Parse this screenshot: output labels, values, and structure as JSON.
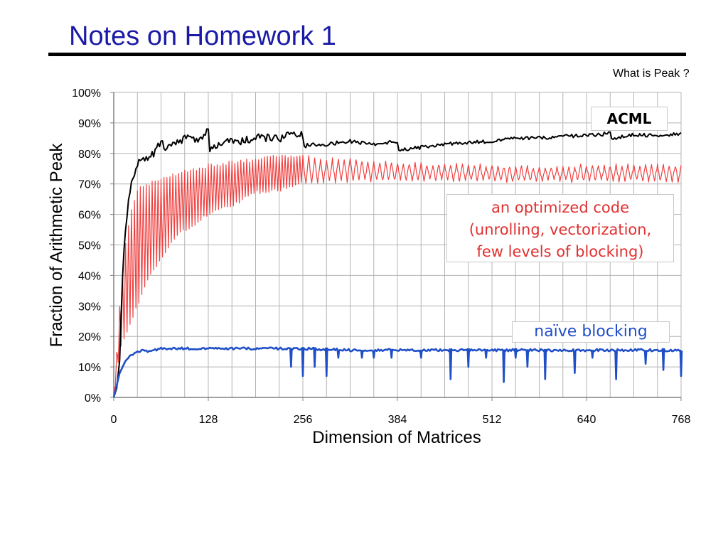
{
  "slide": {
    "title": "Notes on Homework 1",
    "side_note": "What is Peak ?"
  },
  "callouts": {
    "acml": "ACML",
    "optimized_lines": [
      "an optimized code",
      "(unrolling, vectorization,",
      "few levels of blocking)"
    ],
    "naive": "naïve blocking"
  },
  "colors": {
    "acml": "#000000",
    "optimized": "#f04040",
    "naive": "#1f4fc8",
    "grid": "#b4b4b4",
    "title": "#1a1aa6"
  },
  "chart_data": {
    "type": "line",
    "title": "",
    "xlabel": "Dimension of Matrices",
    "ylabel": "Fraction of Arithmetic Peak",
    "xlim": [
      0,
      768
    ],
    "ylim": [
      0,
      100
    ],
    "x_ticks": [
      0,
      128,
      256,
      384,
      512,
      640,
      768
    ],
    "y_ticks": [
      0,
      10,
      20,
      30,
      40,
      50,
      60,
      70,
      80,
      90,
      100
    ],
    "y_tick_labels": [
      "0%",
      "10%",
      "20%",
      "30%",
      "40%",
      "50%",
      "60%",
      "70%",
      "80%",
      "90%",
      "100%"
    ],
    "grid": true,
    "series": [
      {
        "name": "ACML",
        "x": [
          0,
          4,
          8,
          12,
          16,
          20,
          24,
          28,
          32,
          40,
          48,
          56,
          64,
          72,
          80,
          88,
          96,
          104,
          112,
          120,
          128,
          130,
          136,
          144,
          160,
          176,
          192,
          208,
          224,
          240,
          256,
          258,
          264,
          288,
          320,
          352,
          384,
          386,
          416,
          448,
          480,
          512,
          544,
          576,
          608,
          640,
          672,
          674,
          704,
          736,
          768
        ],
        "y": [
          0,
          3,
          12,
          40,
          55,
          65,
          70,
          74,
          77,
          79,
          78,
          81,
          83,
          82,
          84,
          83,
          85,
          86,
          84,
          86,
          87,
          80,
          82,
          83,
          84,
          84,
          85,
          85,
          85,
          86,
          86,
          82,
          83,
          83,
          84,
          83,
          84,
          81,
          82,
          83,
          83.5,
          84,
          85,
          85,
          85.5,
          86,
          86.5,
          85,
          86,
          86,
          86.5
        ]
      },
      {
        "name": "an optimized code",
        "x": [
          0,
          8,
          16,
          24,
          32,
          48,
          64,
          80,
          96,
          112,
          128,
          160,
          192,
          224,
          256,
          288,
          320,
          352,
          384,
          416,
          448,
          480,
          512,
          544,
          576,
          608,
          640,
          672,
          704,
          736,
          768
        ],
        "upper": [
          0,
          30,
          50,
          62,
          68,
          70,
          72,
          73,
          74,
          75,
          76,
          77,
          78,
          79,
          79,
          78,
          78,
          77,
          77,
          76.5,
          76.5,
          76,
          76,
          75.5,
          75.5,
          75.5,
          76,
          76,
          76,
          76,
          76
        ],
        "lower": [
          0,
          15,
          20,
          25,
          30,
          40,
          45,
          52,
          55,
          57,
          60,
          63,
          67,
          68,
          70,
          70.5,
          71,
          71,
          71,
          71,
          71,
          71,
          71,
          71,
          71,
          71,
          71,
          71,
          71,
          71,
          71
        ]
      },
      {
        "name": "naïve blocking",
        "x": [
          0,
          4,
          8,
          12,
          16,
          24,
          32,
          40,
          48,
          64,
          96,
          128,
          192,
          256,
          320,
          384,
          448,
          512,
          576,
          640,
          704,
          768
        ],
        "y": [
          0,
          4,
          8,
          10,
          12,
          14,
          15,
          15.5,
          15,
          16,
          16,
          16,
          16,
          16,
          15.5,
          15.5,
          15.5,
          15.5,
          15.5,
          15.5,
          15.5,
          15.5
        ],
        "dips": [
          [
            240,
            10
          ],
          [
            256,
            7
          ],
          [
            272,
            10
          ],
          [
            288,
            7
          ],
          [
            304,
            13
          ],
          [
            336,
            13
          ],
          [
            352,
            13
          ],
          [
            376,
            13
          ],
          [
            416,
            13
          ],
          [
            456,
            6
          ],
          [
            480,
            10
          ],
          [
            504,
            13
          ],
          [
            528,
            5
          ],
          [
            544,
            13
          ],
          [
            560,
            10
          ],
          [
            584,
            6
          ],
          [
            624,
            8
          ],
          [
            648,
            13
          ],
          [
            680,
            6
          ],
          [
            720,
            11
          ],
          [
            744,
            9
          ],
          [
            768,
            7
          ]
        ]
      }
    ]
  }
}
